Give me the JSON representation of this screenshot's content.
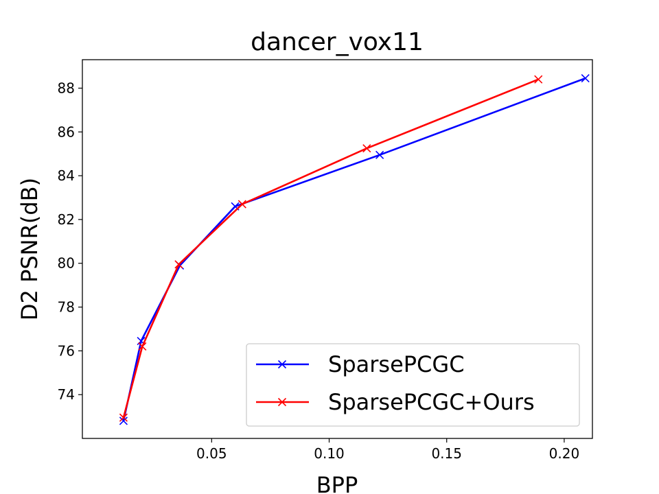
{
  "chart_data": {
    "type": "line",
    "title": "dancer_vox11",
    "xlabel": "BPP",
    "ylabel": "D2 PSNR(dB)",
    "xlim": [
      -0.005,
      0.212
    ],
    "ylim": [
      72.0,
      89.3
    ],
    "xticks": [
      0.05,
      0.1,
      0.15,
      0.2
    ],
    "xtick_labels": [
      "0.05",
      "0.10",
      "0.15",
      "0.20"
    ],
    "yticks": [
      74,
      76,
      78,
      80,
      82,
      84,
      86,
      88
    ],
    "ytick_labels": [
      "74",
      "76",
      "78",
      "80",
      "82",
      "84",
      "86",
      "88"
    ],
    "grid": false,
    "legend_position": "lower-right",
    "series": [
      {
        "name": "SparsePCGC",
        "color": "#0000ff",
        "marker": "x",
        "x": [
          0.0125,
          0.02,
          0.0365,
          0.06,
          0.1215,
          0.209
        ],
        "y": [
          72.8,
          76.45,
          79.9,
          82.6,
          84.95,
          88.45
        ]
      },
      {
        "name": "SparsePCGC+Ours",
        "color": "#ff0000",
        "marker": "x",
        "x": [
          0.0125,
          0.0205,
          0.036,
          0.063,
          0.116,
          0.189
        ],
        "y": [
          72.95,
          76.2,
          79.95,
          82.7,
          85.25,
          88.4
        ]
      }
    ]
  }
}
